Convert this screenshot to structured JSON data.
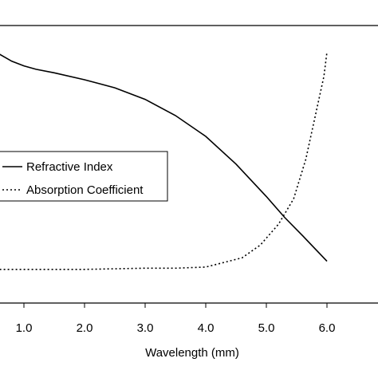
{
  "chart_data": {
    "type": "line",
    "title": "",
    "xlabel": "Wavelength (mm)",
    "ylabel": "",
    "x_ticks": [
      "1.0",
      "2.0",
      "3.0",
      "4.0",
      "5.0",
      "6.0"
    ],
    "xlim": [
      0.6,
      7.0
    ],
    "ylim": [
      0,
      1
    ],
    "grid": false,
    "legend": {
      "placement": "center-left"
    },
    "series": [
      {
        "name": "Refractive Index",
        "style": "solid",
        "color": "#000000",
        "x": [
          0.6,
          0.8,
          1.0,
          1.2,
          1.5,
          2.0,
          2.5,
          3.0,
          3.5,
          4.0,
          4.5,
          5.0,
          5.3,
          5.6,
          6.0
        ],
        "y": [
          0.955,
          0.925,
          0.905,
          0.89,
          0.875,
          0.845,
          0.81,
          0.76,
          0.69,
          0.6,
          0.48,
          0.34,
          0.25,
          0.17,
          0.06
        ]
      },
      {
        "name": "Absorption Coefficient",
        "style": "dotted",
        "color": "#000000",
        "x": [
          0.6,
          1.0,
          2.0,
          3.0,
          3.5,
          4.0,
          4.3,
          4.6,
          4.9,
          5.2,
          5.45,
          5.65,
          5.8,
          5.95,
          6.0
        ],
        "y": [
          0.025,
          0.025,
          0.025,
          0.03,
          0.03,
          0.035,
          0.055,
          0.075,
          0.13,
          0.22,
          0.33,
          0.5,
          0.68,
          0.86,
          0.965
        ]
      }
    ]
  }
}
